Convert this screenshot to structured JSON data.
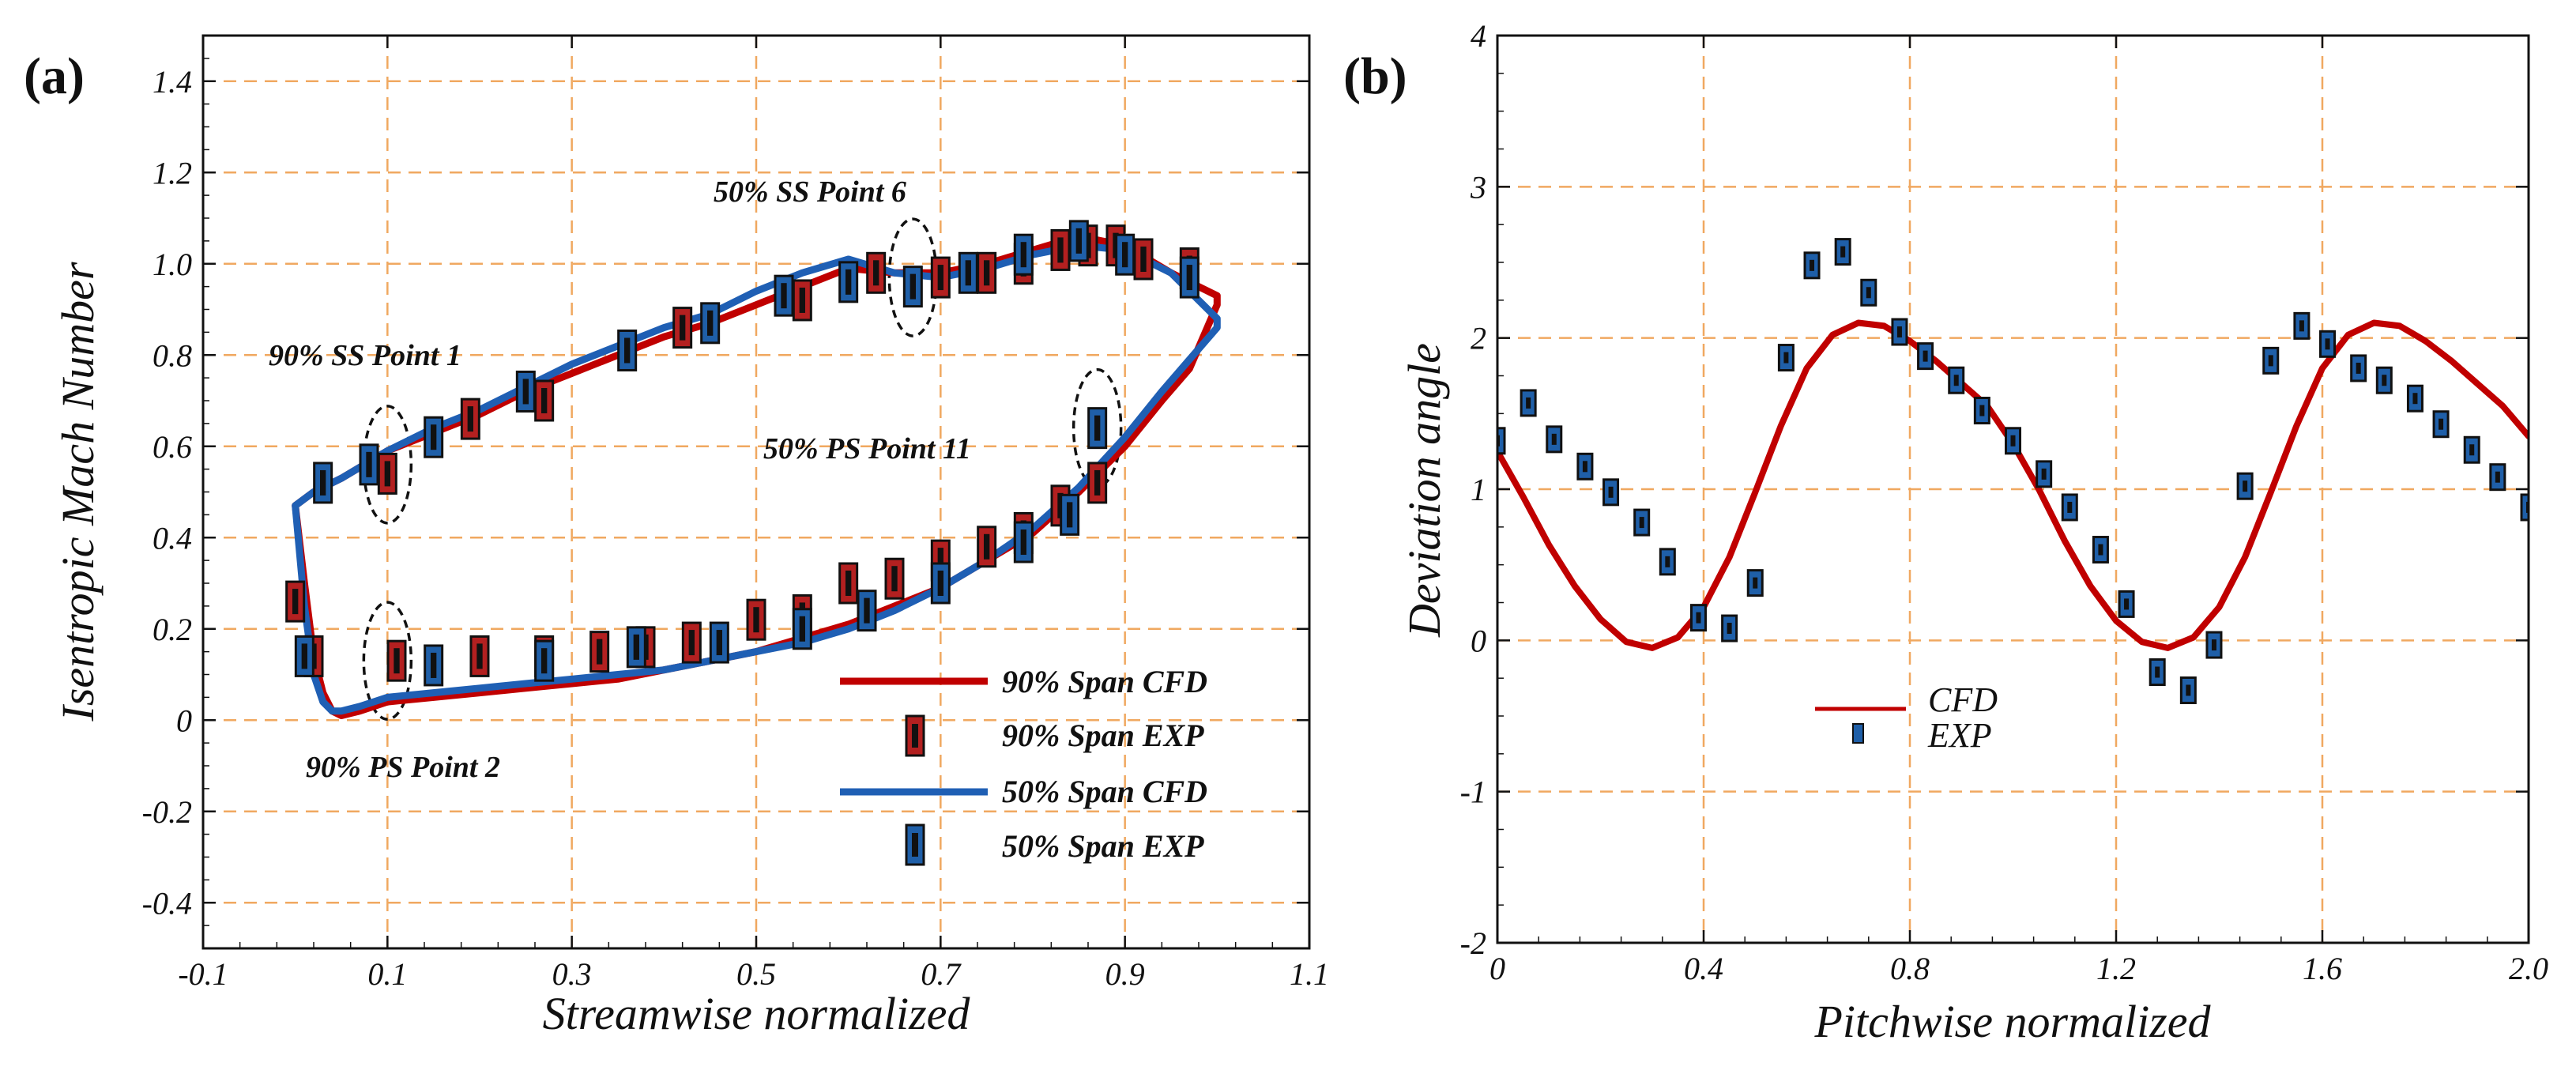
{
  "colors": {
    "red": "#c00000",
    "red_marker": "#b32020",
    "blue": "#1f5fb4",
    "blue_marker": "#1f5fa8",
    "grid": "#f0a860"
  },
  "chart_data": [
    {
      "type": "line",
      "panel_label": "(a)",
      "xlabel": "Streamwise normalized",
      "ylabel": "Isentropic Mach Number",
      "xlim": [
        -0.1,
        1.1
      ],
      "ylim": [
        -0.5,
        1.5
      ],
      "x_ticks": [
        -0.1,
        0.1,
        0.3,
        0.5,
        0.7,
        0.9,
        1.1
      ],
      "x_tick_labels": [
        "-0.1",
        "0.1",
        "0.3",
        "0.5",
        "0.7",
        "0.9",
        "1.1"
      ],
      "y_ticks": [
        -0.4,
        -0.2,
        0,
        0.2,
        0.4,
        0.6,
        0.8,
        1.0,
        1.2,
        1.4
      ],
      "y_tick_labels": [
        "-0.4",
        "-0.2",
        "0",
        "0.2",
        "0.4",
        "0.6",
        "0.8",
        "1.0",
        "1.2",
        "1.4"
      ],
      "grid": true,
      "series": [
        {
          "name": "90% Span CFD",
          "kind": "line",
          "color": "red",
          "x": [
            0.0,
            0.02,
            0.05,
            0.1,
            0.15,
            0.2,
            0.25,
            0.3,
            0.35,
            0.4,
            0.45,
            0.5,
            0.55,
            0.6,
            0.65,
            0.7,
            0.75,
            0.8,
            0.85,
            0.9,
            0.95,
            1.0,
            1.0,
            0.97,
            0.94,
            0.9,
            0.85,
            0.8,
            0.75,
            0.7,
            0.65,
            0.6,
            0.55,
            0.5,
            0.45,
            0.4,
            0.35,
            0.3,
            0.25,
            0.2,
            0.15,
            0.1,
            0.07,
            0.05,
            0.04,
            0.03,
            0.02,
            0.01,
            0.0
          ],
          "y": [
            0.47,
            0.5,
            0.53,
            0.59,
            0.63,
            0.67,
            0.72,
            0.76,
            0.8,
            0.84,
            0.87,
            0.91,
            0.95,
            0.99,
            0.98,
            0.98,
            1.0,
            1.03,
            1.06,
            1.04,
            0.98,
            0.93,
            0.91,
            0.77,
            0.7,
            0.6,
            0.5,
            0.41,
            0.35,
            0.29,
            0.25,
            0.21,
            0.18,
            0.15,
            0.13,
            0.11,
            0.09,
            0.08,
            0.07,
            0.06,
            0.05,
            0.04,
            0.02,
            0.01,
            0.02,
            0.06,
            0.14,
            0.3,
            0.47
          ]
        },
        {
          "name": "90% Span EXP",
          "kind": "marker",
          "color": "red",
          "x": [
            0.0,
            0.1,
            0.19,
            0.27,
            0.42,
            0.55,
            0.63,
            0.7,
            0.75,
            0.79,
            0.83,
            0.86,
            0.89,
            0.92,
            0.97,
            0.02,
            0.11,
            0.2,
            0.27,
            0.33,
            0.38,
            0.43,
            0.5,
            0.55,
            0.6,
            0.65,
            0.7,
            0.75,
            0.79,
            0.83,
            0.87
          ],
          "y": [
            0.26,
            0.54,
            0.66,
            0.7,
            0.86,
            0.92,
            0.98,
            0.97,
            0.98,
            1.0,
            1.03,
            1.04,
            1.04,
            1.01,
            0.99,
            0.14,
            0.13,
            0.14,
            0.14,
            0.15,
            0.16,
            0.17,
            0.22,
            0.23,
            0.3,
            0.31,
            0.35,
            0.38,
            0.41,
            0.47,
            0.52
          ]
        },
        {
          "name": "50% Span CFD",
          "kind": "line",
          "color": "blue",
          "x": [
            0.0,
            0.02,
            0.05,
            0.1,
            0.15,
            0.2,
            0.25,
            0.3,
            0.35,
            0.4,
            0.45,
            0.5,
            0.55,
            0.6,
            0.65,
            0.7,
            0.75,
            0.8,
            0.85,
            0.9,
            0.95,
            1.0,
            1.0,
            0.97,
            0.94,
            0.9,
            0.85,
            0.8,
            0.75,
            0.7,
            0.65,
            0.6,
            0.55,
            0.5,
            0.45,
            0.4,
            0.35,
            0.3,
            0.25,
            0.2,
            0.15,
            0.1,
            0.07,
            0.05,
            0.04,
            0.03,
            0.02,
            0.01,
            0.0
          ],
          "y": [
            0.47,
            0.5,
            0.53,
            0.59,
            0.64,
            0.68,
            0.73,
            0.78,
            0.82,
            0.86,
            0.89,
            0.94,
            0.98,
            1.01,
            0.98,
            0.97,
            0.99,
            1.02,
            1.04,
            1.03,
            0.98,
            0.88,
            0.86,
            0.79,
            0.72,
            0.62,
            0.51,
            0.42,
            0.35,
            0.29,
            0.24,
            0.2,
            0.17,
            0.15,
            0.13,
            0.11,
            0.1,
            0.09,
            0.08,
            0.07,
            0.06,
            0.05,
            0.03,
            0.02,
            0.02,
            0.04,
            0.1,
            0.25,
            0.47
          ]
        },
        {
          "name": "50% Span EXP",
          "kind": "marker",
          "color": "blue",
          "x": [
            0.03,
            0.08,
            0.15,
            0.25,
            0.36,
            0.45,
            0.53,
            0.6,
            0.67,
            0.73,
            0.79,
            0.85,
            0.9,
            0.97,
            0.01,
            0.15,
            0.27,
            0.37,
            0.46,
            0.55,
            0.62,
            0.7,
            0.79,
            0.84,
            0.87
          ],
          "y": [
            0.52,
            0.56,
            0.62,
            0.72,
            0.81,
            0.87,
            0.93,
            0.96,
            0.95,
            0.98,
            1.02,
            1.05,
            1.02,
            0.97,
            0.14,
            0.12,
            0.13,
            0.16,
            0.17,
            0.2,
            0.24,
            0.3,
            0.39,
            0.45,
            0.64
          ]
        }
      ],
      "annotations": [
        "90% SS Point 1",
        "50% SS Point 6",
        "50% PS Point 11",
        "90% PS Point 2"
      ],
      "highlight_ellipses": [
        {
          "label": "90% SS Point 1",
          "x": 0.1,
          "y": 0.56
        },
        {
          "label": "90% PS Point 2",
          "x": 0.1,
          "y": 0.13
        },
        {
          "label": "50% SS Point 6",
          "x": 0.67,
          "y": 0.97
        },
        {
          "label": "50% PS Point 11",
          "x": 0.87,
          "y": 0.64
        }
      ],
      "legend": [
        "90% Span CFD",
        "90% Span EXP",
        "50% Span CFD",
        "50% Span EXP"
      ],
      "legend_position": "bottom-right"
    },
    {
      "type": "line",
      "panel_label": "(b)",
      "xlabel": "Pitchwise normalized",
      "ylabel": "Deviation angle",
      "xlim": [
        0,
        2.0
      ],
      "ylim": [
        -2,
        4
      ],
      "x_ticks": [
        0,
        0.4,
        0.8,
        1.2,
        1.6,
        2.0
      ],
      "x_tick_labels": [
        "0",
        "0.4",
        "0.8",
        "1.2",
        "1.6",
        "2.0"
      ],
      "y_ticks": [
        -2,
        -1,
        0,
        1,
        2,
        3,
        4
      ],
      "y_tick_labels": [
        "-2",
        "-1",
        "0",
        "1",
        "2",
        "3",
        "4"
      ],
      "grid": true,
      "series": [
        {
          "name": "CFD",
          "kind": "line",
          "color": "red",
          "x": [
            0.0,
            0.05,
            0.1,
            0.15,
            0.2,
            0.25,
            0.3,
            0.35,
            0.4,
            0.45,
            0.5,
            0.55,
            0.6,
            0.65,
            0.7,
            0.75,
            0.8,
            0.85,
            0.9,
            0.95,
            1.0,
            1.05,
            1.1,
            1.15,
            1.2,
            1.25,
            1.3,
            1.35,
            1.4,
            1.45,
            1.5,
            1.55,
            1.6,
            1.65,
            1.7,
            1.75,
            1.8,
            1.85,
            1.9,
            1.95,
            2.0
          ],
          "y": [
            1.25,
            0.95,
            0.63,
            0.36,
            0.14,
            -0.01,
            -0.05,
            0.02,
            0.22,
            0.55,
            0.98,
            1.42,
            1.8,
            2.02,
            2.1,
            2.08,
            1.98,
            1.85,
            1.7,
            1.55,
            1.3,
            1.0,
            0.66,
            0.36,
            0.13,
            -0.01,
            -0.05,
            0.02,
            0.22,
            0.55,
            0.98,
            1.42,
            1.8,
            2.02,
            2.1,
            2.08,
            1.98,
            1.85,
            1.7,
            1.55,
            1.35
          ]
        },
        {
          "name": "EXP",
          "kind": "marker",
          "color": "blue",
          "x": [
            0.0,
            0.06,
            0.11,
            0.17,
            0.22,
            0.28,
            0.33,
            0.39,
            0.45,
            0.5,
            0.56,
            0.61,
            0.67,
            0.72,
            0.78,
            0.83,
            0.89,
            0.94,
            1.0,
            1.06,
            1.11,
            1.17,
            1.22,
            1.28,
            1.34,
            1.39,
            1.45,
            1.5,
            1.56,
            1.61,
            1.67,
            1.72,
            1.78,
            1.83,
            1.89,
            1.94,
            2.0
          ],
          "y": [
            1.32,
            1.57,
            1.33,
            1.15,
            0.98,
            0.78,
            0.52,
            0.15,
            0.08,
            0.38,
            1.87,
            2.48,
            2.57,
            2.3,
            2.04,
            1.88,
            1.72,
            1.52,
            1.32,
            1.1,
            0.88,
            0.6,
            0.24,
            -0.21,
            -0.33,
            -0.03,
            1.02,
            1.85,
            2.08,
            1.96,
            1.8,
            1.72,
            1.6,
            1.43,
            1.26,
            1.08,
            0.88
          ]
        }
      ],
      "legend": [
        "CFD",
        "EXP"
      ],
      "legend_position": "bottom-left"
    }
  ]
}
